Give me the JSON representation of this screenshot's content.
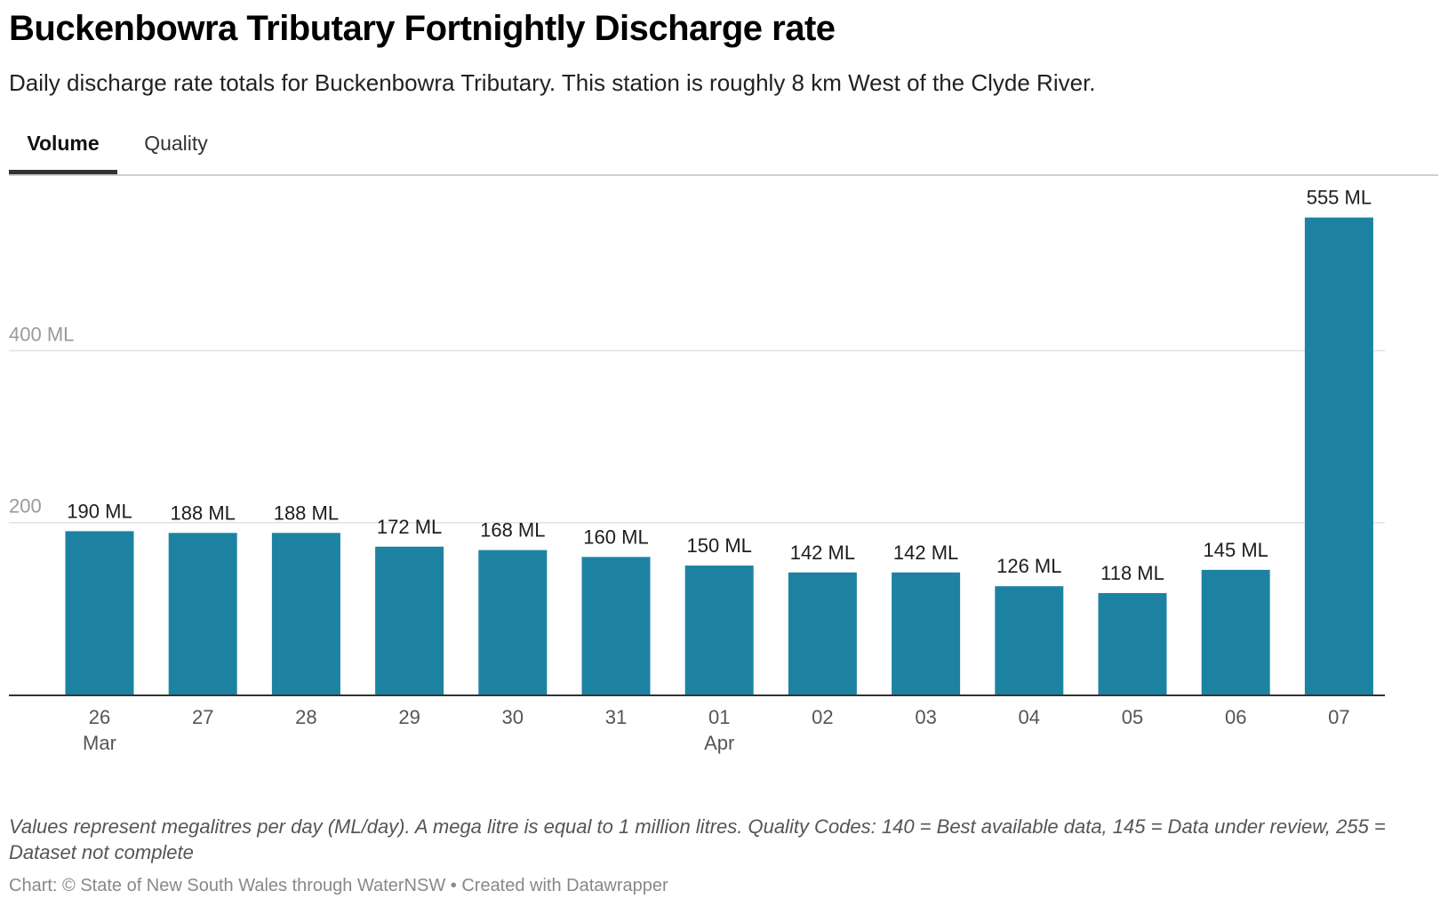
{
  "header": {
    "title": "Buckenbowra Tributary Fortnightly Discharge rate",
    "subtitle": "Daily discharge rate totals for Buckenbowra Tributary. This station is roughly 8 km West of the Clyde River."
  },
  "tabs": [
    {
      "label": "Volume",
      "active": true
    },
    {
      "label": "Quality",
      "active": false
    }
  ],
  "chart_data": {
    "type": "bar",
    "categories": [
      "26",
      "27",
      "28",
      "29",
      "30",
      "31",
      "01",
      "02",
      "03",
      "04",
      "05",
      "06",
      "07"
    ],
    "month_labels": [
      "Mar",
      "",
      "",
      "",
      "",
      "",
      "Apr",
      "",
      "",
      "",
      "",
      "",
      ""
    ],
    "values": [
      190,
      188,
      188,
      172,
      168,
      160,
      150,
      142,
      142,
      126,
      118,
      145,
      555
    ],
    "value_labels": [
      "190 ML",
      "188 ML",
      "188 ML",
      "172 ML",
      "168 ML",
      "160 ML",
      "150 ML",
      "142 ML",
      "142 ML",
      "126 ML",
      "118 ML",
      "145 ML",
      "555 ML"
    ],
    "y_ticks": [
      200,
      400
    ],
    "y_tick_labels": [
      "200",
      "400 ML"
    ],
    "ylim": [
      0,
      600
    ],
    "grid": true,
    "bar_color": "#1d82a2"
  },
  "footer": {
    "note": "Values represent megalitres per day (ML/day). A mega litre is equal to 1 million litres. Quality Codes: 140 = Best available data, 145 = Data under review, 255 = Dataset not complete",
    "credit": "Chart: © State of New South Wales through WaterNSW • Created with Datawrapper"
  }
}
